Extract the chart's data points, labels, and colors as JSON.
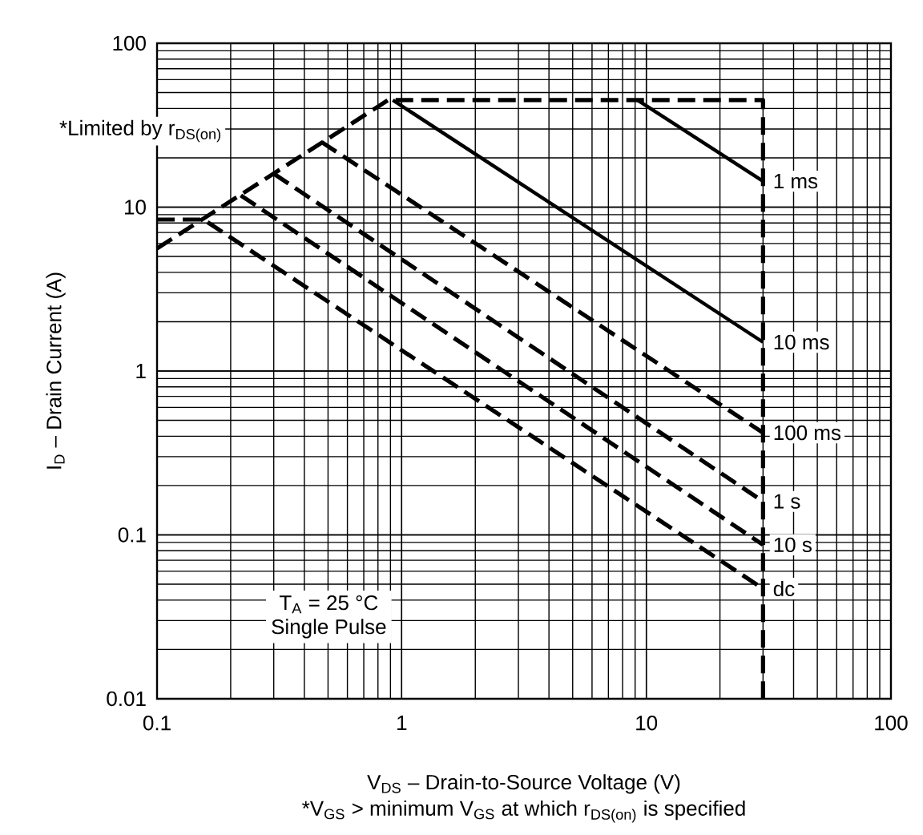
{
  "chart_data": {
    "type": "line",
    "xlabel": "V$_{DS}$  –  Drain-to-Source Voltage (V)",
    "ylabel": "I$_{D}$ – Drain Current (A)",
    "log": "xy",
    "grid": true,
    "marker": "none",
    "xlim": [
      0.1,
      100
    ],
    "ylim": [
      0.01,
      100
    ],
    "xticks": [
      0.1,
      1,
      10,
      100
    ],
    "yticks": [
      0.01,
      0.1,
      1,
      10,
      100
    ],
    "annotations": [
      "*Limited by r$_{DS(on)}$",
      "T$_{A}$ = 25 °C",
      "Single Pulse",
      "*V$_{GS}$ >  minimum V$_{GS}$ at which r$_{DS(on)}$ is specified"
    ],
    "series": [
      {
        "color": "#000000",
        "line_style": "dashed",
        "x": [
          0.1,
          0.88,
          30,
          30
        ],
        "values": [
          5.6,
          45,
          45,
          0.01
        ]
      },
      {
        "name": "1 ms",
        "color": "#000000",
        "line_style": "solid",
        "x": [
          9.2,
          30
        ],
        "values": [
          45,
          14.4
        ]
      },
      {
        "name": "10 ms",
        "color": "#000000",
        "line_style": "solid",
        "x": [
          0.92,
          30
        ],
        "values": [
          45,
          1.5
        ]
      },
      {
        "name": "100 ms",
        "color": "#000000",
        "line_style": "dashed",
        "x": [
          0.47,
          30
        ],
        "values": [
          25,
          0.42
        ]
      },
      {
        "name": "1 s",
        "color": "#000000",
        "line_style": "dashed",
        "x": [
          0.3,
          30
        ],
        "values": [
          16,
          0.16
        ]
      },
      {
        "name": "10 s",
        "color": "#000000",
        "line_style": "dashed",
        "x": [
          0.22,
          30
        ],
        "values": [
          11.8,
          0.087
        ]
      },
      {
        "name": "dc",
        "color": "#000000",
        "line_style": "dashed",
        "x": [
          0.1,
          0.155,
          30
        ],
        "values": [
          8.4,
          8.4,
          0.047
        ]
      }
    ]
  }
}
